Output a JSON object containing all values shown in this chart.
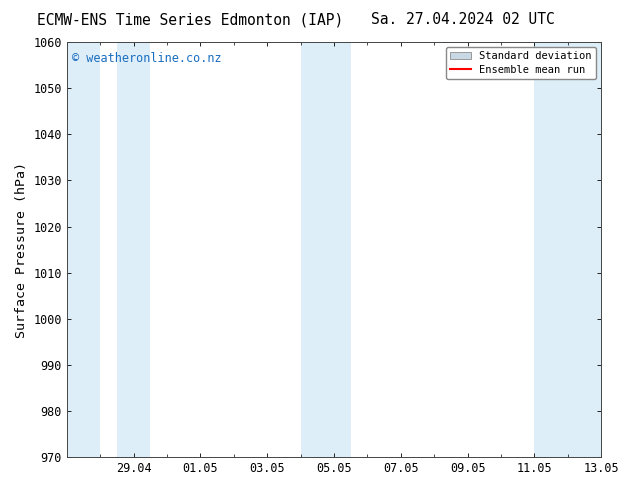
{
  "title_left": "ECMW-ENS Time Series Edmonton (IAP)",
  "title_right": "Sa. 27.04.2024 02 UTC",
  "ylabel": "Surface Pressure (hPa)",
  "ylim": [
    970,
    1060
  ],
  "yticks": [
    970,
    980,
    990,
    1000,
    1010,
    1020,
    1030,
    1040,
    1050,
    1060
  ],
  "xtick_labels": [
    "29.04",
    "01.05",
    "03.05",
    "05.05",
    "07.05",
    "09.05",
    "11.05",
    "13.05"
  ],
  "band_color": "#ddeef9",
  "background_color": "#ffffff",
  "watermark_text": "© weatheronline.co.nz",
  "watermark_color": "#1a6ec0",
  "legend_std_label": "Standard deviation",
  "legend_mean_label": "Ensemble mean run",
  "legend_std_color": "#c8d8e4",
  "legend_std_edge": "#999999",
  "legend_mean_color": "#ff0000",
  "title_fontsize": 10.5,
  "tick_fontsize": 8.5,
  "ylabel_fontsize": 9.5
}
